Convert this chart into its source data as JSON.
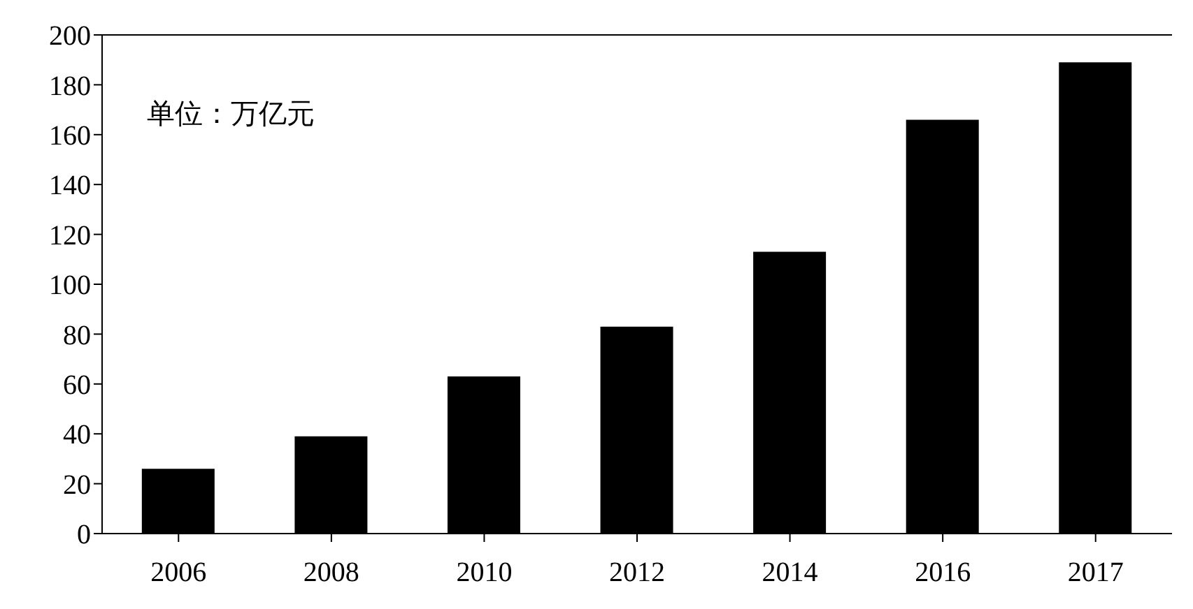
{
  "chart_data": {
    "type": "bar",
    "categories": [
      "2006",
      "2008",
      "2010",
      "2012",
      "2014",
      "2016",
      "2017"
    ],
    "values": [
      26,
      39,
      63,
      83,
      113,
      166,
      189
    ],
    "color": "#000000",
    "ylim": [
      0,
      200
    ],
    "yticks": [
      0,
      20,
      40,
      60,
      80,
      100,
      120,
      140,
      160,
      180,
      200
    ],
    "annotations": [
      "单位：万亿元"
    ]
  }
}
